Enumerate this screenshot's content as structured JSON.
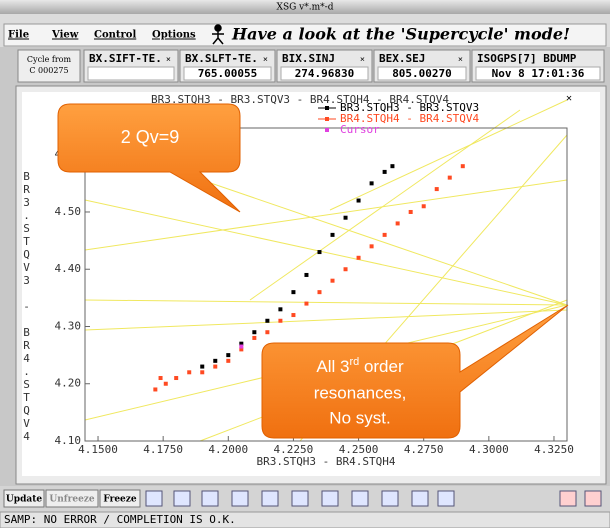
{
  "window_title": "XSG v*.m*-d",
  "menu": [
    "File",
    "View",
    "Control",
    "Options"
  ],
  "banner": "Have a look at the 'Supercycle' mode!",
  "cycle": [
    "Cycle from",
    "C 000275"
  ],
  "fields": [
    {
      "name": "BX.SIFT-TE."
    },
    {
      "name": "BX.SLFT-TE.",
      "value": "765.00055"
    },
    {
      "name": "BIX.SINJ",
      "value": "274.96830"
    },
    {
      "name": "BEX.SEJ",
      "value": "805.00270"
    },
    {
      "name": "ISOGPS[7] BDUMP",
      "value": "Nov  8 17:01:36"
    }
  ],
  "chart_data": {
    "type": "scatter",
    "title": "BR3.STQH3  -  BR3.STQV3  -  BR4.STQH4  -  BR4.STQV4",
    "x_label": "BR3.STQH3  -  BR4.STQH4",
    "y_label": "BR3.STQV3 - BR4.STQV4",
    "xlim": [
      4.145,
      4.33
    ],
    "ylim": [
      4.1,
      4.61
    ],
    "xticks": [
      {
        "value": 4.15,
        "label": "4.1500"
      },
      {
        "value": 4.175,
        "label": "4.1750"
      },
      {
        "value": 4.2,
        "label": "4.2000"
      },
      {
        "value": 4.225,
        "label": "4.2250"
      },
      {
        "value": 4.25,
        "label": "4.2500"
      },
      {
        "value": 4.275,
        "label": "4.2750"
      },
      {
        "value": 4.3,
        "label": "4.3000"
      },
      {
        "value": 4.325,
        "label": "4.3250"
      }
    ],
    "yticks": [
      {
        "value": 4.1,
        "label": "4.10"
      },
      {
        "value": 4.2,
        "label": "4.20"
      },
      {
        "value": 4.3,
        "label": "4.30"
      },
      {
        "value": 4.4,
        "label": "4.40"
      },
      {
        "value": 4.5,
        "label": "4.50"
      },
      {
        "value": 4.6,
        "label": "4.60"
      }
    ],
    "series": [
      {
        "name": "BR3.STQH3  -  BR3.STQV3",
        "color": "#000000",
        "x": [
          4.19,
          4.195,
          4.2,
          4.205,
          4.21,
          4.215,
          4.22,
          4.225,
          4.23,
          4.235,
          4.24,
          4.245,
          4.25,
          4.255,
          4.26,
          4.263
        ],
        "values": [
          4.23,
          4.24,
          4.25,
          4.27,
          4.29,
          4.31,
          4.33,
          4.36,
          4.39,
          4.43,
          4.46,
          4.49,
          4.52,
          4.55,
          4.57,
          4.58
        ]
      },
      {
        "name": "BR4.STQH4  -  BR4.STQV4",
        "color": "#ff4a22",
        "x": [
          4.172,
          4.174,
          4.176,
          4.18,
          4.185,
          4.19,
          4.195,
          4.2,
          4.205,
          4.21,
          4.215,
          4.22,
          4.225,
          4.23,
          4.235,
          4.24,
          4.245,
          4.25,
          4.255,
          4.26,
          4.265,
          4.27,
          4.275,
          4.28,
          4.285,
          4.29
        ],
        "values": [
          4.19,
          4.21,
          4.2,
          4.21,
          4.22,
          4.22,
          4.23,
          4.24,
          4.26,
          4.28,
          4.29,
          4.31,
          4.32,
          4.34,
          4.36,
          4.38,
          4.4,
          4.42,
          4.44,
          4.46,
          4.48,
          4.5,
          4.51,
          4.54,
          4.56,
          4.58
        ]
      },
      {
        "name": "Cursor",
        "color": "#e040e0",
        "x": [
          4.205
        ],
        "values": [
          4.265
        ]
      }
    ],
    "annotations": [
      {
        "text": "2 Qv=9"
      },
      {
        "text": "All 3",
        "sup": "rd",
        "rest": " order",
        "lines": [
          "resonances,",
          "No syst."
        ]
      }
    ]
  },
  "toolbar": [
    "Update",
    "Unfreeze",
    "Freeze"
  ],
  "status": "SAMP: NO ERROR  /  COMPLETION IS O.K."
}
